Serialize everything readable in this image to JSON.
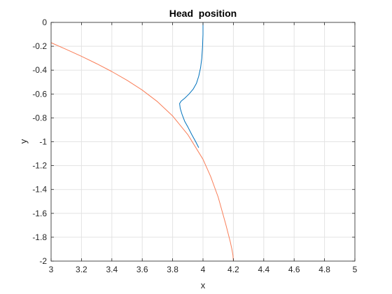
{
  "chart_data": {
    "type": "line",
    "title": "Head  position",
    "xlabel": "x",
    "ylabel": "y",
    "xlim": [
      3,
      5
    ],
    "ylim": [
      -2,
      0
    ],
    "xticks": [
      3,
      3.2,
      3.4,
      3.6,
      3.8,
      4,
      4.2,
      4.4,
      4.6,
      4.8,
      5
    ],
    "xtick_labels": [
      "3",
      "3.2",
      "3.4",
      "3.6",
      "3.8",
      "4",
      "4.2",
      "4.4",
      "4.6",
      "4.8",
      "5"
    ],
    "yticks": [
      0,
      -0.2,
      -0.4,
      -0.6,
      -0.8,
      -1,
      -1.2,
      -1.4,
      -1.6,
      -1.8,
      -2
    ],
    "ytick_labels": [
      "0",
      "-0.2",
      "-0.4",
      "-0.6",
      "-0.8",
      "-1",
      "-1.2",
      "-1.4",
      "-1.6",
      "-1.8",
      "-2"
    ],
    "grid": true,
    "series": [
      {
        "color": "#0072BD",
        "x": [
          4.0,
          4.0,
          3.997,
          3.992,
          3.984,
          3.972,
          3.957,
          3.935,
          3.908,
          3.88,
          3.856,
          3.846,
          3.85,
          3.862,
          3.88,
          3.902,
          3.926,
          3.952,
          3.972
        ],
        "y": [
          0,
          -0.1,
          -0.2,
          -0.3,
          -0.38,
          -0.45,
          -0.51,
          -0.56,
          -0.6,
          -0.635,
          -0.66,
          -0.68,
          -0.72,
          -0.77,
          -0.83,
          -0.88,
          -0.94,
          -1.0,
          -1.05
        ]
      },
      {
        "color": "#F97E58",
        "x": [
          3.0,
          3.1,
          3.2,
          3.3,
          3.4,
          3.5,
          3.6,
          3.7,
          3.8,
          3.9,
          4.0,
          4.05,
          4.1,
          4.15,
          4.18,
          4.19,
          4.197,
          4.2
        ],
        "y": [
          -0.17,
          -0.226,
          -0.284,
          -0.346,
          -0.412,
          -0.485,
          -0.567,
          -0.664,
          -0.784,
          -0.94,
          -1.147,
          -1.29,
          -1.464,
          -1.692,
          -1.84,
          -1.9,
          -1.95,
          -2.0
        ]
      }
    ]
  }
}
